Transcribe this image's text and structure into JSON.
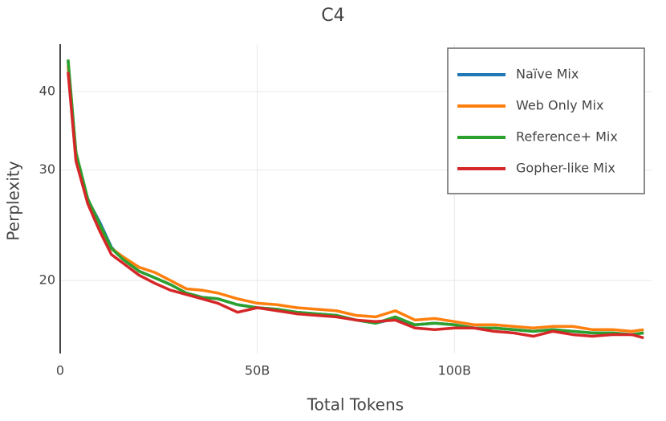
{
  "chart_data": {
    "type": "line",
    "title": "C4",
    "xlabel": "Total Tokens",
    "ylabel": "Perplexity",
    "x": [
      2,
      4,
      7,
      10,
      13,
      16,
      20,
      24,
      28,
      32,
      36,
      40,
      45,
      50,
      55,
      60,
      65,
      70,
      75,
      80,
      85,
      90,
      95,
      100,
      105,
      110,
      115,
      120,
      125,
      130,
      135,
      140,
      145,
      148
    ],
    "series": [
      {
        "name": "Naïve Mix",
        "color": "#1f77b4",
        "values": [
          44.8,
          31.9,
          26.9,
          24.8,
          22.6,
          21.6,
          20.7,
          20.2,
          19.7,
          19.1,
          18.8,
          18.7,
          18.3,
          18.1,
          18.0,
          17.8,
          17.7,
          17.6,
          17.3,
          17.1,
          17.4,
          17.0,
          17.1,
          17.0,
          16.8,
          16.8,
          16.7,
          16.6,
          16.7,
          16.6,
          16.5,
          16.5,
          16.4,
          16.5
        ]
      },
      {
        "name": "Web Only Mix",
        "color": "#ff7f0e",
        "values": [
          44,
          32,
          26.8,
          24.5,
          22.5,
          21.8,
          21,
          20.6,
          20,
          19.4,
          19.3,
          19.1,
          18.7,
          18.4,
          18.3,
          18.1,
          18,
          17.9,
          17.6,
          17.5,
          17.9,
          17.3,
          17.4,
          17.2,
          17.0,
          17.0,
          16.9,
          16.8,
          16.9,
          16.9,
          16.7,
          16.7,
          16.6,
          16.7
        ]
      },
      {
        "name": "Reference+ Mix",
        "color": "#2ca02c",
        "values": [
          45,
          32,
          27,
          24.6,
          22.5,
          21.6,
          20.7,
          20.2,
          19.7,
          19.1,
          18.8,
          18.7,
          18.3,
          18.1,
          18.0,
          17.8,
          17.7,
          17.6,
          17.3,
          17.1,
          17.5,
          17.0,
          17.1,
          17.0,
          16.8,
          16.8,
          16.7,
          16.6,
          16.7,
          16.6,
          16.5,
          16.5,
          16.4,
          16.5
        ]
      },
      {
        "name": "Gopher-like Mix",
        "color": "#d62728",
        "values": [
          43,
          31,
          26.5,
          24,
          22,
          21.3,
          20.4,
          19.8,
          19.3,
          19,
          18.7,
          18.4,
          17.8,
          18.1,
          17.9,
          17.7,
          17.6,
          17.5,
          17.3,
          17.2,
          17.3,
          16.8,
          16.7,
          16.8,
          16.8,
          16.6,
          16.5,
          16.3,
          16.6,
          16.4,
          16.3,
          16.4,
          16.4,
          16.2
        ]
      }
    ],
    "xlim": [
      0,
      150
    ],
    "xticks": [
      0,
      {
        "value": 50,
        "label": "50B"
      },
      {
        "value": 100,
        "label": "100B"
      }
    ],
    "ylim": [
      15.3,
      47.6
    ],
    "yticks": [
      20,
      30,
      40
    ],
    "ylog": true,
    "grid": true,
    "legend": "top-right"
  }
}
